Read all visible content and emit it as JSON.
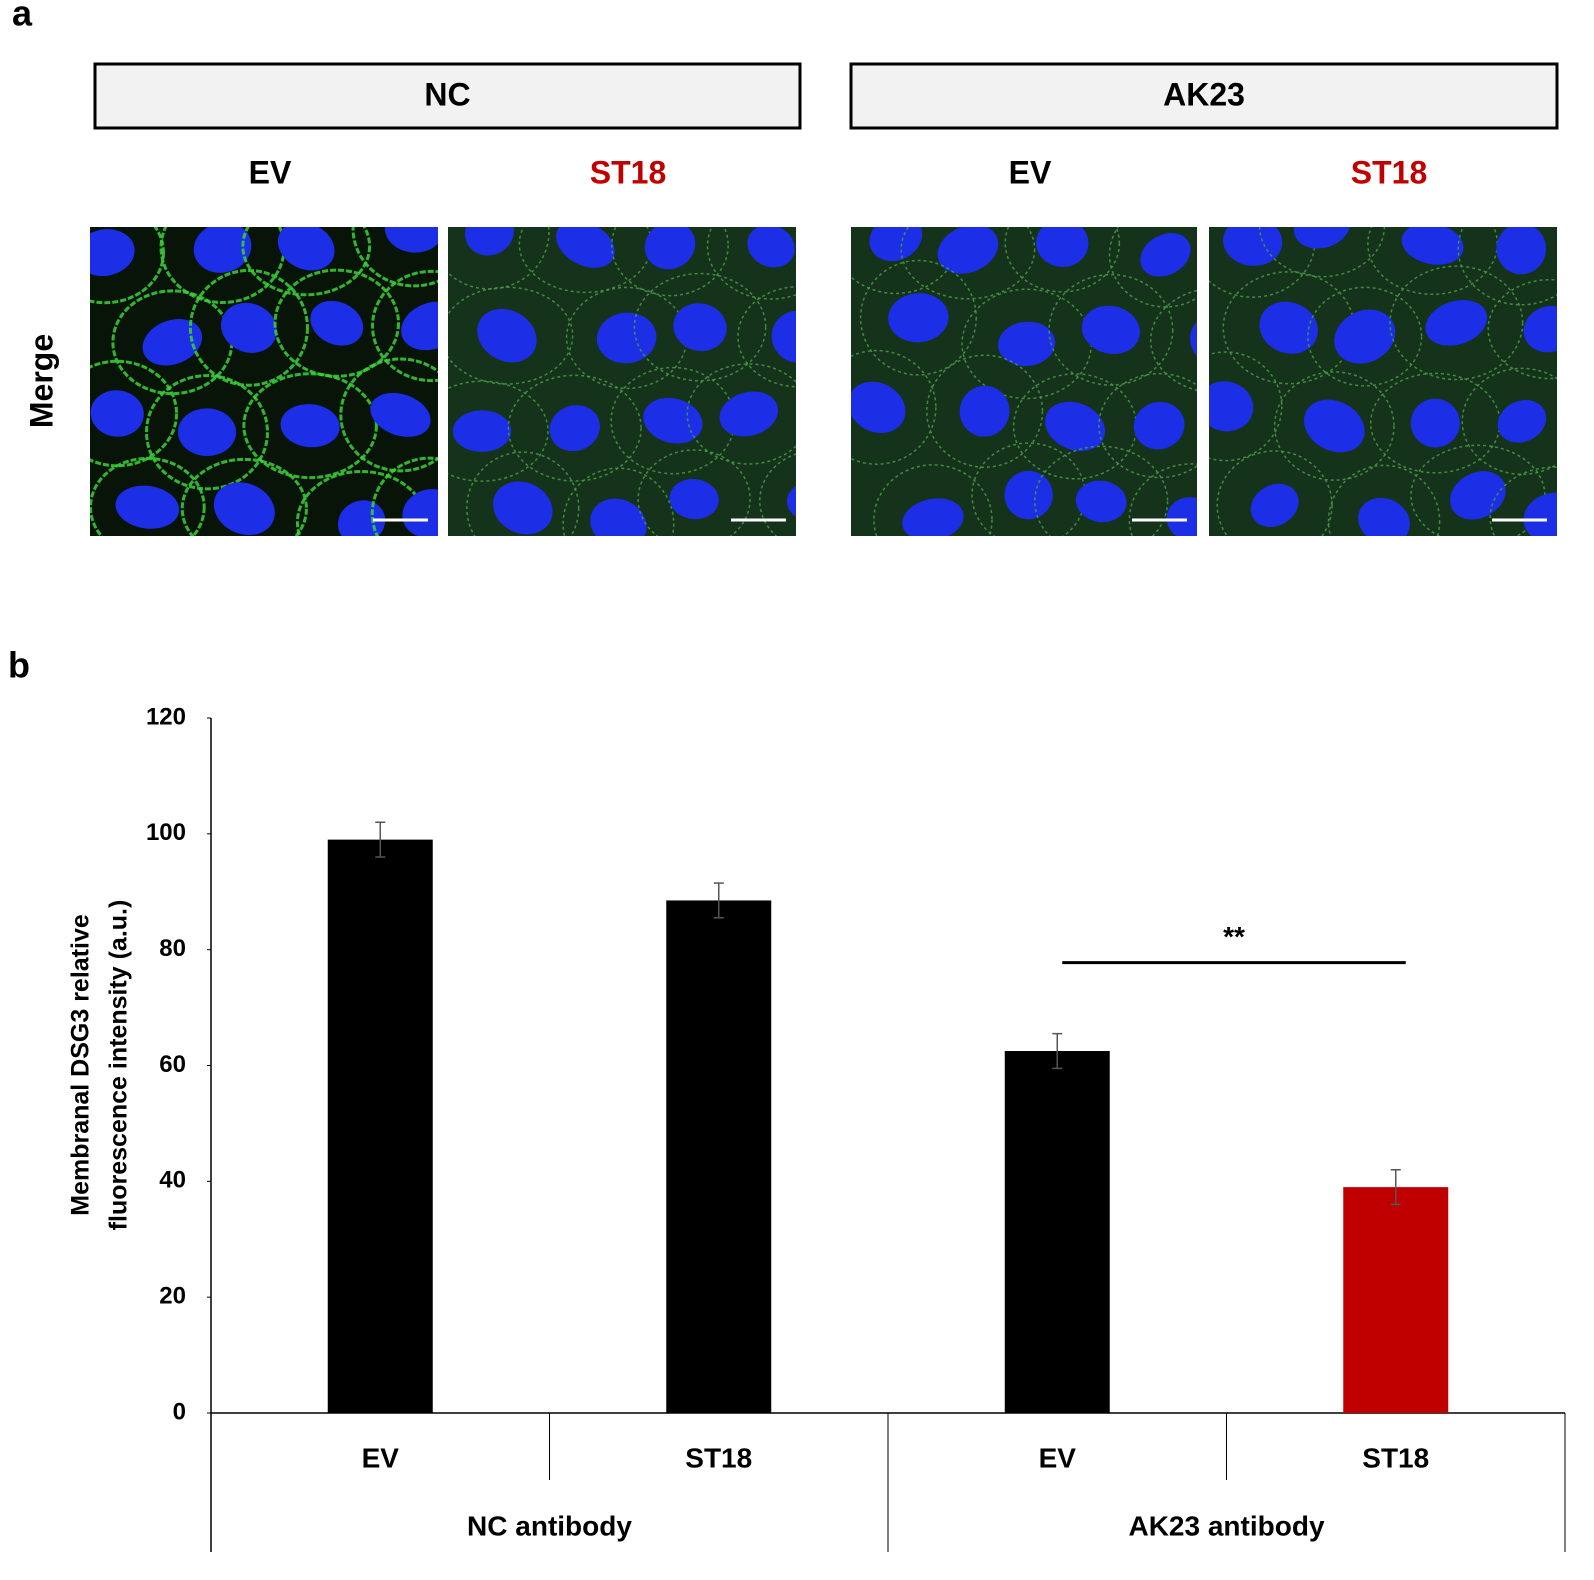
{
  "panel_a": {
    "label": "a",
    "row_label": "Merge",
    "groups": [
      {
        "title": "NC",
        "columns": [
          {
            "label": "EV",
            "color": "#000000"
          },
          {
            "label": "ST18",
            "color": "#c00000"
          }
        ]
      },
      {
        "title": "AK23",
        "columns": [
          {
            "label": "EV",
            "color": "#000000"
          },
          {
            "label": "ST18",
            "color": "#c00000"
          }
        ]
      }
    ]
  },
  "chart_data": {
    "type": "bar",
    "panel_label": "b",
    "ylabel": [
      "Membranal DSG3 relative",
      "fluorescence intensity (a.u.)"
    ],
    "categories": [
      "EV",
      "ST18",
      "EV",
      "ST18"
    ],
    "groups": [
      {
        "label": "NC antibody",
        "span": 2
      },
      {
        "label": "AK23 antibody",
        "span": 2
      }
    ],
    "values": [
      99,
      88.5,
      62.5,
      39
    ],
    "errors": [
      3,
      3,
      3,
      3
    ],
    "colors": [
      "#000000",
      "#000000",
      "#000000",
      "#c00000"
    ],
    "ylim": [
      0,
      120
    ],
    "yticks": [
      0,
      20,
      40,
      60,
      80,
      100,
      120
    ],
    "grid": false,
    "significance": {
      "label": "**",
      "from": 2,
      "to": 3
    }
  }
}
